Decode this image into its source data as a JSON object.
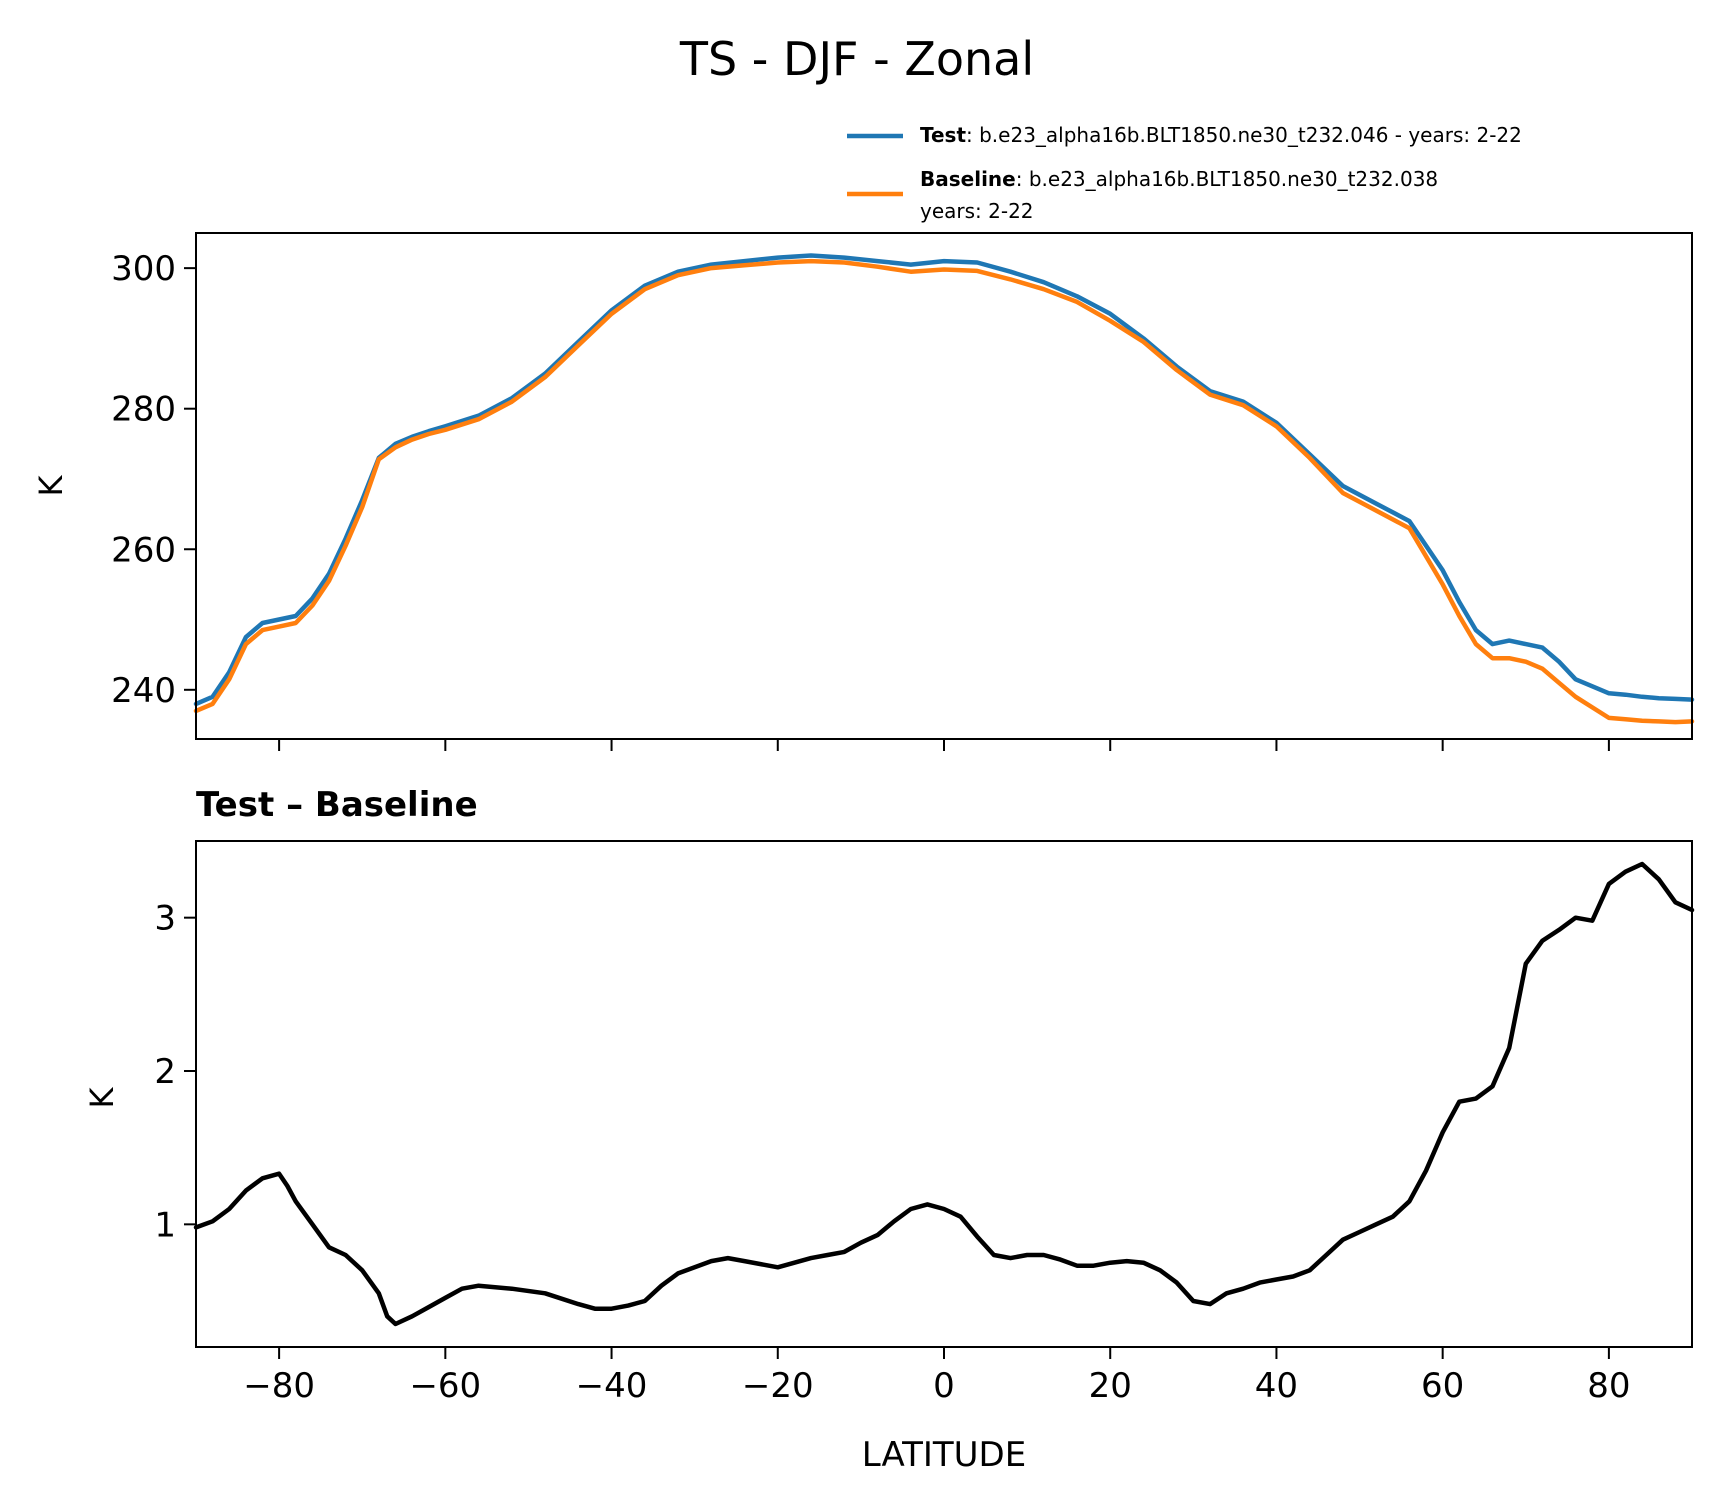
{
  "title": "TS - DJF - Zonal",
  "legend": {
    "test_label": "Test",
    "test_text": ": b.e23_alpha16b.BLT1850.ne30_t232.046 - years: 2-22",
    "baseline_label": "Baseline",
    "baseline_text": ": b.e23_alpha16b.BLT1850.ne30_t232.038",
    "baseline_text2": "years: 2-22"
  },
  "colors": {
    "test": "#1f77b4",
    "baseline": "#ff7f0e",
    "diff": "#000000"
  },
  "chart_data": [
    {
      "type": "line",
      "title": "",
      "xlabel": "",
      "ylabel": "K",
      "xlim": [
        -90,
        90
      ],
      "ylim": [
        233,
        305
      ],
      "xticks": [
        -80,
        -60,
        -40,
        -20,
        0,
        20,
        40,
        60,
        80
      ],
      "yticks": [
        240,
        260,
        280,
        300
      ],
      "ytick_labels": [
        "240",
        "260",
        "280",
        "300"
      ],
      "legend_position": "above-right",
      "series": [
        {
          "name": "Test",
          "x": [
            -90,
            -88,
            -86,
            -84,
            -82,
            -80,
            -78,
            -76,
            -74,
            -72,
            -70,
            -68,
            -66,
            -64,
            -62,
            -60,
            -56,
            -52,
            -48,
            -44,
            -40,
            -36,
            -32,
            -28,
            -24,
            -20,
            -16,
            -12,
            -8,
            -4,
            0,
            4,
            8,
            12,
            16,
            20,
            24,
            28,
            32,
            36,
            40,
            44,
            48,
            52,
            56,
            60,
            62,
            64,
            66,
            68,
            70,
            72,
            74,
            76,
            78,
            80,
            82,
            84,
            86,
            88,
            90
          ],
          "y": [
            238,
            239,
            242.5,
            247.5,
            249.5,
            250,
            250.5,
            253,
            256.5,
            261.5,
            267,
            273,
            275,
            276,
            276.8,
            277.5,
            279,
            281.5,
            285,
            289.5,
            294,
            297.5,
            299.5,
            300.5,
            301,
            301.5,
            301.8,
            301.5,
            301,
            300.5,
            301,
            300.8,
            299.5,
            298,
            296,
            293.5,
            290,
            286,
            282.5,
            281,
            278,
            273.5,
            269,
            266.5,
            264,
            257,
            252.5,
            248.5,
            246.5,
            247,
            246.5,
            246,
            244,
            241.5,
            240.5,
            239.5,
            239.3,
            239,
            238.8,
            238.7,
            238.6
          ]
        },
        {
          "name": "Baseline",
          "x": [
            -90,
            -88,
            -86,
            -84,
            -82,
            -80,
            -78,
            -76,
            -74,
            -72,
            -70,
            -68,
            -66,
            -64,
            -62,
            -60,
            -56,
            -52,
            -48,
            -44,
            -40,
            -36,
            -32,
            -28,
            -24,
            -20,
            -16,
            -12,
            -8,
            -4,
            0,
            4,
            8,
            12,
            16,
            20,
            24,
            28,
            32,
            36,
            40,
            44,
            48,
            52,
            56,
            60,
            62,
            64,
            66,
            68,
            70,
            72,
            74,
            76,
            78,
            80,
            82,
            84,
            86,
            88,
            90
          ],
          "y": [
            237,
            238,
            241.5,
            246.5,
            248.5,
            249,
            249.5,
            252,
            255.5,
            260.5,
            266,
            272.8,
            274.5,
            275.6,
            276.4,
            277,
            278.5,
            281,
            284.5,
            289,
            293.5,
            297,
            299,
            300,
            300.4,
            300.8,
            301,
            300.8,
            300.2,
            299.5,
            299.8,
            299.6,
            298.4,
            297,
            295.2,
            292.5,
            289.5,
            285.5,
            282,
            280.5,
            277.5,
            273,
            268,
            265.5,
            263,
            255,
            250.5,
            246.5,
            244.5,
            244.5,
            244,
            243,
            241,
            239,
            237.5,
            236,
            235.8,
            235.6,
            235.5,
            235.4,
            235.5
          ]
        }
      ]
    },
    {
      "type": "line",
      "title": "Test – Baseline",
      "xlabel": "LATITUDE",
      "ylabel": "K",
      "xlim": [
        -90,
        90
      ],
      "ylim": [
        0.2,
        3.5
      ],
      "xticks": [
        -80,
        -60,
        -40,
        -20,
        0,
        20,
        40,
        60,
        80
      ],
      "xtick_labels": [
        "−80",
        "−60",
        "−40",
        "−20",
        "0",
        "20",
        "40",
        "60",
        "80"
      ],
      "yticks": [
        1,
        2,
        3
      ],
      "ytick_labels": [
        "1",
        "2",
        "3"
      ],
      "series": [
        {
          "x": [
            -90,
            -88,
            -86,
            -84,
            -82,
            -80,
            -79,
            -78,
            -76,
            -74,
            -72,
            -70,
            -68,
            -67,
            -66,
            -64,
            -62,
            -60,
            -58,
            -56,
            -52,
            -48,
            -44,
            -42,
            -40,
            -38,
            -36,
            -34,
            -32,
            -28,
            -26,
            -24,
            -20,
            -18,
            -16,
            -14,
            -12,
            -10,
            -8,
            -6,
            -4,
            -2,
            0,
            2,
            4,
            6,
            8,
            10,
            12,
            14,
            16,
            18,
            20,
            22,
            24,
            26,
            28,
            30,
            32,
            34,
            36,
            38,
            40,
            42,
            44,
            46,
            48,
            50,
            52,
            54,
            56,
            58,
            60,
            62,
            64,
            66,
            68,
            70,
            72,
            74,
            76,
            78,
            80,
            82,
            84,
            86,
            88,
            90
          ],
          "y": [
            0.98,
            1.02,
            1.1,
            1.22,
            1.3,
            1.33,
            1.25,
            1.15,
            1.0,
            0.85,
            0.8,
            0.7,
            0.55,
            0.4,
            0.35,
            0.4,
            0.46,
            0.52,
            0.58,
            0.6,
            0.58,
            0.55,
            0.48,
            0.45,
            0.45,
            0.47,
            0.5,
            0.6,
            0.68,
            0.76,
            0.78,
            0.76,
            0.72,
            0.75,
            0.78,
            0.8,
            0.82,
            0.88,
            0.93,
            1.02,
            1.1,
            1.13,
            1.1,
            1.05,
            0.92,
            0.8,
            0.78,
            0.8,
            0.8,
            0.77,
            0.73,
            0.73,
            0.75,
            0.76,
            0.75,
            0.7,
            0.62,
            0.5,
            0.48,
            0.55,
            0.58,
            0.62,
            0.64,
            0.66,
            0.7,
            0.8,
            0.9,
            0.95,
            1.0,
            1.05,
            1.15,
            1.35,
            1.6,
            1.8,
            1.82,
            1.9,
            2.15,
            2.7,
            2.85,
            2.92,
            3.0,
            2.98,
            3.22,
            3.3,
            3.35,
            3.25,
            3.1,
            3.05
          ]
        }
      ]
    }
  ]
}
